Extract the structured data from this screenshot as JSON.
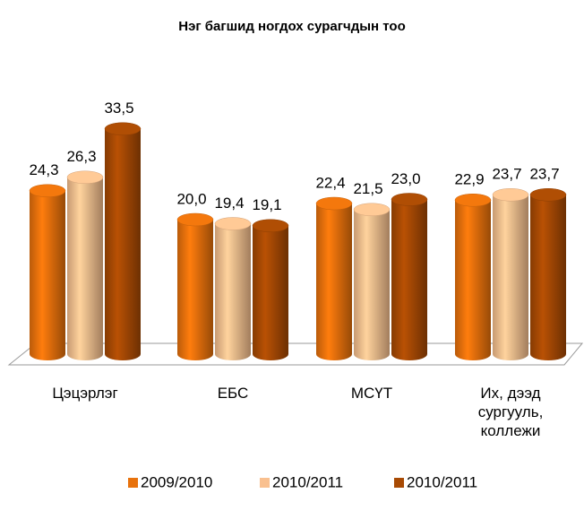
{
  "chart_data": {
    "type": "bar3d",
    "title": "Нэг багшид ногдох сурагчдын тоо",
    "categories": [
      "Цэцэрлэг",
      "ЕБС",
      "МСҮТ",
      "Их, дээд сургууль, коллежи"
    ],
    "series": [
      {
        "name": "2009/2010",
        "color": "#e8720c",
        "values": [
          24.3,
          20.0,
          22.4,
          22.9
        ],
        "value_labels": [
          "24,3",
          "20,0",
          "22,4",
          "22,9"
        ]
      },
      {
        "name": "2010/2011",
        "color": "#f9c08f",
        "values": [
          26.3,
          19.4,
          21.5,
          23.7
        ],
        "value_labels": [
          "26,3",
          "19,4",
          "21,5",
          "23,7"
        ]
      },
      {
        "name": "2010/2011",
        "color": "#a84a04",
        "values": [
          33.5,
          19.1,
          23.0,
          23.7
        ],
        "value_labels": [
          "33,5",
          "19,1",
          "23,0",
          "23,7"
        ]
      }
    ],
    "ylim": [
      0,
      35
    ],
    "legend": "bottom"
  }
}
